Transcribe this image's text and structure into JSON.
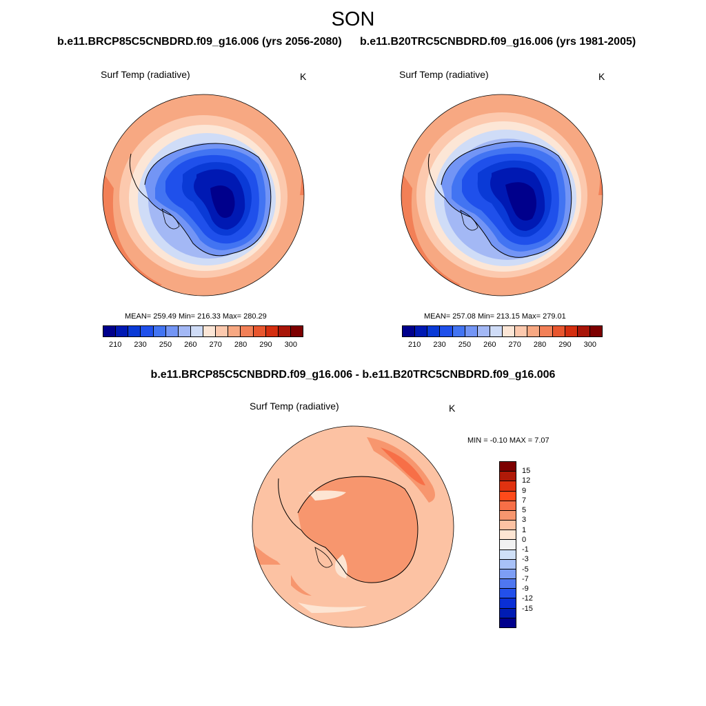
{
  "title": "SON",
  "panels": [
    {
      "case": "b.e11.BRCP85C5CNBDRD.f09_g16.006 (yrs 2056-2080)",
      "variable": "Surf Temp (radiative)",
      "units": "K",
      "stats": "MEAN= 259.49  Min= 216.33  Max= 280.29",
      "colorbar": {
        "colors": [
          "#00008c",
          "#0019b3",
          "#0a3ad6",
          "#1f50eb",
          "#4274f2",
          "#7395f5",
          "#a3b8f5",
          "#cfdcf7",
          "#fce6d6",
          "#fcc9ae",
          "#f7a882",
          "#f28057",
          "#e8562e",
          "#d42e0f",
          "#a81508",
          "#7d0000"
        ],
        "ticks": [
          "210",
          "230",
          "250",
          "260",
          "270",
          "280",
          "290",
          "300"
        ]
      }
    },
    {
      "case": "b.e11.B20TRC5CNBDRD.f09_g16.006 (yrs 1981-2005)",
      "variable": "Surf Temp (radiative)",
      "units": "K",
      "stats": "MEAN= 257.08  Min= 213.15  Max= 279.01",
      "colorbar": {
        "colors": [
          "#00008c",
          "#0019b3",
          "#0a3ad6",
          "#1f50eb",
          "#4274f2",
          "#7395f5",
          "#a3b8f5",
          "#cfdcf7",
          "#fce6d6",
          "#fcc9ae",
          "#f7a882",
          "#f28057",
          "#e8562e",
          "#d42e0f",
          "#a81508",
          "#7d0000"
        ],
        "ticks": [
          "210",
          "230",
          "250",
          "260",
          "270",
          "280",
          "290",
          "300"
        ]
      }
    }
  ],
  "difference": {
    "title": "b.e11.BRCP85C5CNBDRD.f09_g16.006 - b.e11.B20TRC5CNBDRD.f09_g16.006",
    "variable": "Surf Temp (radiative)",
    "units": "K",
    "stats": "MIN =  -0.10 MAX =   7.07",
    "colorbar": {
      "colors_top_to_bottom": [
        "#7d0000",
        "#b01a08",
        "#e03210",
        "#ff4a1a",
        "#f76f47",
        "#f7966e",
        "#fcc2a3",
        "#fde5d3",
        "#f2f2f2",
        "#cfe0f7",
        "#a8c1f7",
        "#7d9ef5",
        "#4f77f0",
        "#2350eb",
        "#0a2fd6",
        "#001cb3",
        "#00008c"
      ],
      "ticks": [
        "15",
        "12",
        "9",
        "7",
        "5",
        "3",
        "1",
        "0",
        "-1",
        "-3",
        "-5",
        "-7",
        "-9",
        "-12",
        "-15"
      ]
    }
  }
}
